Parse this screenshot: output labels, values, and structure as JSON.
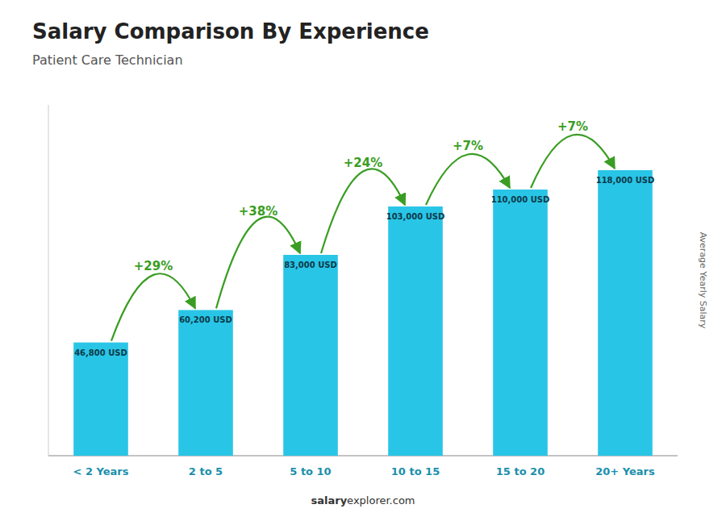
{
  "chart_data": {
    "type": "bar",
    "title": "Salary Comparison By Experience",
    "subtitle": "Patient Care Technician",
    "ylabel": "Average Yearly Salary",
    "categories": [
      "< 2 Years",
      "2 to 5",
      "5 to 10",
      "10 to 15",
      "15 to 20",
      "20+ Years"
    ],
    "values": [
      46800,
      60200,
      83000,
      103000,
      110000,
      118000
    ],
    "value_labels": [
      "46,800 USD",
      "60,200 USD",
      "83,000 USD",
      "103,000 USD",
      "110,000 USD",
      "118,000 USD"
    ],
    "data_labels": true,
    "annotations": [
      "+29%",
      "+38%",
      "+24%",
      "+7%",
      "+7%"
    ],
    "footer": [
      "salary",
      "explorer.com"
    ],
    "color": "#29c5e6",
    "ylim": [
      0,
      145000
    ],
    "tick_labels": "x",
    "grid": false
  }
}
